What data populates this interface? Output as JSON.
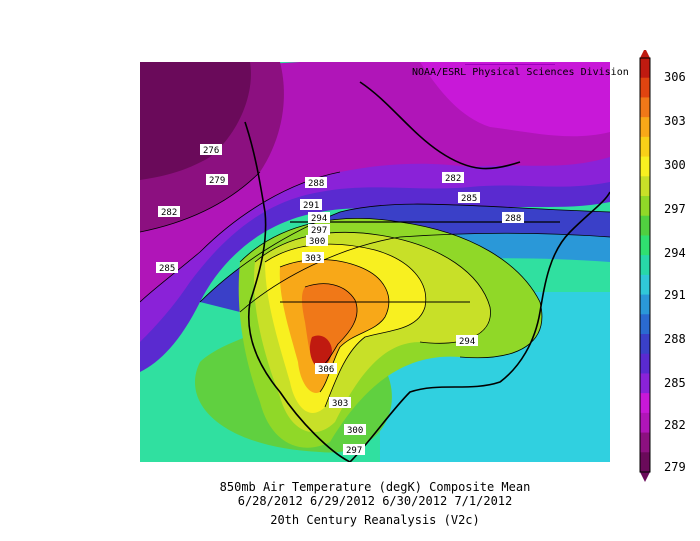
{
  "header": {
    "credit": "NOAA/ESRL Physical Sciences Division"
  },
  "caption": {
    "line1": "850mb Air Temperature (degK) Composite Mean",
    "line2": "6/28/2012 6/29/2012 6/30/2012 7/1/2012",
    "line3": "20th Century Reanalysis (V2c)"
  },
  "colorbar": {
    "ticks": [
      "306",
      "303",
      "300",
      "297",
      "294",
      "291",
      "288",
      "285",
      "282",
      "279"
    ],
    "colors": [
      "#6a0a5a",
      "#8c1080",
      "#b015b8",
      "#c818d8",
      "#8a22d8",
      "#5a2ad0",
      "#3a40c8",
      "#2a6ad0",
      "#2a98d8",
      "#30c8d8",
      "#28d8a8",
      "#30e070",
      "#50d040",
      "#90d828",
      "#c8e028",
      "#f8f020",
      "#f8d018",
      "#f8a818",
      "#f07818",
      "#e04410",
      "#c01a10"
    ]
  },
  "contour_labels": [
    {
      "text": "276"
    },
    {
      "text": "279"
    },
    {
      "text": "282"
    },
    {
      "text": "285"
    },
    {
      "text": "288"
    },
    {
      "text": "291"
    },
    {
      "text": "294"
    },
    {
      "text": "297"
    },
    {
      "text": "300"
    },
    {
      "text": "303"
    },
    {
      "text": "306"
    },
    {
      "text": "303"
    },
    {
      "text": "300"
    },
    {
      "text": "297"
    },
    {
      "text": "282"
    },
    {
      "text": "285"
    },
    {
      "text": "288"
    },
    {
      "text": "294"
    }
  ]
}
